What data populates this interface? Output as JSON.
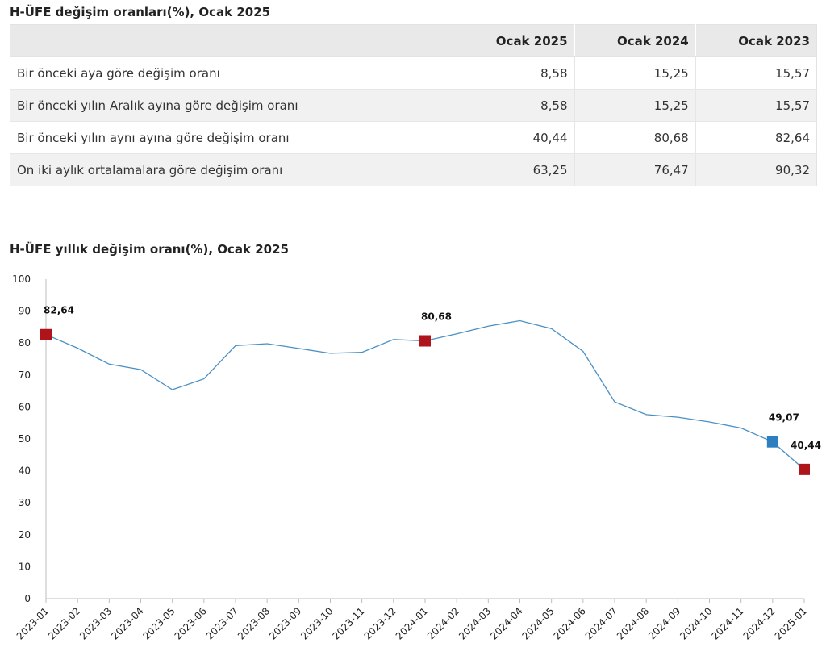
{
  "table": {
    "title": "H-ÜFE değişim oranları(%), Ocak 2025",
    "headers": [
      "",
      "Ocak 2025",
      "Ocak 2024",
      "Ocak 2023"
    ],
    "rows": [
      {
        "label": "Bir önceki aya göre değişim oranı",
        "values": [
          "8,58",
          "15,25",
          "15,57"
        ]
      },
      {
        "label": "Bir önceki yılın Aralık ayına göre değişim oranı",
        "values": [
          "8,58",
          "15,25",
          "15,57"
        ]
      },
      {
        "label": "Bir önceki yılın aynı ayına göre değişim oranı",
        "values": [
          "40,44",
          "80,68",
          "82,64"
        ]
      },
      {
        "label": "On iki aylık ortalamalara göre değişim oranı",
        "values": [
          "63,25",
          "76,47",
          "90,32"
        ]
      }
    ]
  },
  "chart_data": {
    "type": "line",
    "title": "H-ÜFE yıllık değişim oranı(%), Ocak 2025",
    "xlabel": "",
    "ylabel": "",
    "ylim": [
      0,
      100
    ],
    "yticks": [
      "0",
      "10",
      "20",
      "30",
      "40",
      "50",
      "60",
      "70",
      "80",
      "90",
      "100"
    ],
    "x": [
      "2023-01",
      "2023-02",
      "2023-03",
      "2023-04",
      "2023-05",
      "2023-06",
      "2023-07",
      "2023-08",
      "2023-09",
      "2023-10",
      "2023-11",
      "2023-12",
      "2024-01",
      "2024-02",
      "2024-03",
      "2024-04",
      "2024-05",
      "2024-06",
      "2024-07",
      "2024-08",
      "2024-09",
      "2024-10",
      "2024-11",
      "2024-12",
      "2025-01"
    ],
    "series": [
      {
        "values": [
          82.64,
          78.4,
          73.4,
          71.7,
          65.4,
          68.8,
          79.2,
          79.8,
          78.3,
          76.8,
          77.1,
          81.1,
          80.68,
          82.9,
          85.3,
          87.0,
          84.5,
          77.4,
          61.6,
          57.6,
          56.8,
          55.3,
          53.4,
          49.07,
          40.44
        ]
      }
    ],
    "highlights": [
      {
        "x": "2023-01",
        "label": "82,64",
        "color": "#b0141b"
      },
      {
        "x": "2024-01",
        "label": "80,68",
        "color": "#b0141b"
      },
      {
        "x": "2024-12",
        "label": "49,07",
        "color": "#2e7fc0"
      },
      {
        "x": "2025-01",
        "label": "40,44",
        "color": "#b0141b"
      }
    ],
    "line_color": "#4a90c4",
    "grid": false,
    "legend": "none"
  }
}
